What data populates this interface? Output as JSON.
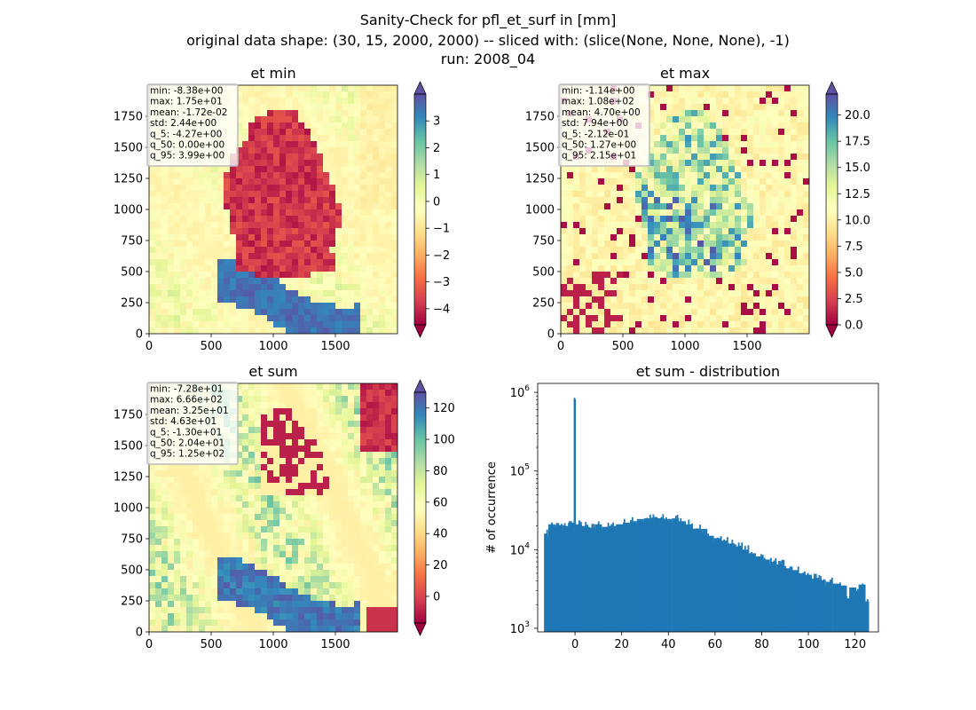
{
  "figure": {
    "title_lines": [
      "Sanity-Check for pfl_et_surf in [mm]",
      "original data shape: (30, 15, 2000, 2000) -- sliced with: (slice(None, None, None), -1)",
      "run: 2008_04"
    ]
  },
  "colormap": {
    "name": "Spectral",
    "stops": [
      "#9e0142",
      "#d53e4f",
      "#f46d43",
      "#fdae61",
      "#fee08b",
      "#ffffbf",
      "#e6f598",
      "#abdda4",
      "#66c2a5",
      "#3288bd",
      "#5e4fa2"
    ]
  },
  "chart_data": [
    {
      "type": "heatmap",
      "title": "et min",
      "xlim": [
        0,
        2000
      ],
      "ylim": [
        0,
        2000
      ],
      "xticks": [
        "0",
        "500",
        "1000",
        "1500"
      ],
      "yticks": [
        "0",
        "250",
        "500",
        "750",
        "1000",
        "1250",
        "1500",
        "1750"
      ],
      "colorbar": {
        "range": [
          -4.6,
          4.0
        ],
        "ticks": [
          "3",
          "2",
          "1",
          "0",
          "−1",
          "−2",
          "−3",
          "−4"
        ],
        "tick_values": [
          3,
          2,
          1,
          0,
          -1,
          -2,
          -3,
          -4
        ],
        "extend": "both"
      },
      "stats": [
        "min: -8.38e+00",
        "max: 1.75e+01",
        "mean: -1.72e-02",
        "std: 2.44e+00",
        "q_5: -4.27e+00",
        "q_50: 0.00e+00",
        "q_95: 3.99e+00"
      ]
    },
    {
      "type": "heatmap",
      "title": "et max",
      "xlim": [
        0,
        2000
      ],
      "ylim": [
        0,
        2000
      ],
      "xticks": [
        "0",
        "500",
        "1000",
        "1500"
      ],
      "yticks": [
        "0",
        "250",
        "500",
        "750",
        "1000",
        "1250",
        "1500",
        "1750"
      ],
      "colorbar": {
        "range": [
          0,
          22
        ],
        "ticks": [
          "20.0",
          "17.5",
          "15.0",
          "12.5",
          "10.0",
          "7.5",
          "5.0",
          "2.5",
          "0.0"
        ],
        "tick_values": [
          20,
          17.5,
          15,
          12.5,
          10,
          7.5,
          5,
          2.5,
          0
        ],
        "extend": "both"
      },
      "stats": [
        "min: -1.14e+00",
        "max: 1.08e+02",
        "mean: 4.70e+00",
        "std: 7.94e+00",
        "q_5: -2.12e-01",
        "q_50: 1.27e+00",
        "q_95: 2.15e+01"
      ]
    },
    {
      "type": "heatmap",
      "title": "et sum",
      "xlim": [
        0,
        2000
      ],
      "ylim": [
        0,
        2000
      ],
      "xticks": [
        "0",
        "500",
        "1000",
        "1500"
      ],
      "yticks": [
        "0",
        "250",
        "500",
        "750",
        "1000",
        "1250",
        "1500",
        "1750"
      ],
      "colorbar": {
        "range": [
          -17,
          130
        ],
        "ticks": [
          "120",
          "100",
          "80",
          "60",
          "40",
          "20",
          "0"
        ],
        "tick_values": [
          120,
          100,
          80,
          60,
          40,
          20,
          0
        ],
        "extend": "both"
      },
      "stats": [
        "min: -7.28e+01",
        "max: 6.66e+02",
        "mean: 3.25e+01",
        "std: 4.63e+01",
        "q_5: -1.30e+01",
        "q_50: 2.04e+01",
        "q_95: 1.25e+02"
      ]
    },
    {
      "type": "bar",
      "title": "et sum - distribution",
      "ylabel": "# of occurrence",
      "xlabel": "",
      "yscale": "log",
      "xlim": [
        -16,
        130
      ],
      "ylim": [
        900,
        1300000
      ],
      "xticks": [
        "0",
        "20",
        "40",
        "60",
        "80",
        "100",
        "120"
      ],
      "xtick_values": [
        0,
        20,
        40,
        60,
        80,
        100,
        120
      ],
      "yticks": [
        {
          "base": "10",
          "exp": "3"
        },
        {
          "base": "10",
          "exp": "4"
        },
        {
          "base": "10",
          "exp": "5"
        },
        {
          "base": "10",
          "exp": "6"
        }
      ],
      "ytick_values": [
        1000,
        10000,
        100000,
        1000000
      ],
      "bar_color": "#1f77b4",
      "bin_width": 0.69,
      "bins": [
        {
          "x": -13.0,
          "y": 16000
        },
        {
          "x": -10.0,
          "y": 21000
        },
        {
          "x": -7.0,
          "y": 20500
        },
        {
          "x": -4.0,
          "y": 20000
        },
        {
          "x": -1.5,
          "y": 22000
        },
        {
          "x": 0.0,
          "y": 820000
        },
        {
          "x": 1.5,
          "y": 21000
        },
        {
          "x": 4.0,
          "y": 20000
        },
        {
          "x": 7.0,
          "y": 19000
        },
        {
          "x": 10.0,
          "y": 21000
        },
        {
          "x": 13.0,
          "y": 19500
        },
        {
          "x": 16.0,
          "y": 20000
        },
        {
          "x": 19.0,
          "y": 21000
        },
        {
          "x": 22.0,
          "y": 22000
        },
        {
          "x": 25.0,
          "y": 23000
        },
        {
          "x": 28.0,
          "y": 24500
        },
        {
          "x": 31.0,
          "y": 25000
        },
        {
          "x": 34.0,
          "y": 25500
        },
        {
          "x": 37.0,
          "y": 25000
        },
        {
          "x": 40.0,
          "y": 24500
        },
        {
          "x": 43.0,
          "y": 25000
        },
        {
          "x": 46.0,
          "y": 23000
        },
        {
          "x": 49.0,
          "y": 21000
        },
        {
          "x": 52.0,
          "y": 18500
        },
        {
          "x": 55.0,
          "y": 16500
        },
        {
          "x": 58.0,
          "y": 15000
        },
        {
          "x": 61.0,
          "y": 14000
        },
        {
          "x": 64.0,
          "y": 13000
        },
        {
          "x": 67.0,
          "y": 12000
        },
        {
          "x": 70.0,
          "y": 11000
        },
        {
          "x": 73.0,
          "y": 10000
        },
        {
          "x": 76.0,
          "y": 9000
        },
        {
          "x": 79.0,
          "y": 8200
        },
        {
          "x": 82.0,
          "y": 7500
        },
        {
          "x": 85.0,
          "y": 7000
        },
        {
          "x": 88.0,
          "y": 6500
        },
        {
          "x": 91.0,
          "y": 5800
        },
        {
          "x": 94.0,
          "y": 5500
        },
        {
          "x": 97.0,
          "y": 5000
        },
        {
          "x": 100.0,
          "y": 4800
        },
        {
          "x": 103.0,
          "y": 4300
        },
        {
          "x": 106.0,
          "y": 4100
        },
        {
          "x": 109.0,
          "y": 3900
        },
        {
          "x": 112.0,
          "y": 3700
        },
        {
          "x": 115.0,
          "y": 3500
        },
        {
          "x": 117.0,
          "y": 2400
        },
        {
          "x": 119.0,
          "y": 3300
        },
        {
          "x": 121.0,
          "y": 3000
        },
        {
          "x": 123.0,
          "y": 3600
        },
        {
          "x": 124.5,
          "y": 2200
        }
      ]
    }
  ]
}
